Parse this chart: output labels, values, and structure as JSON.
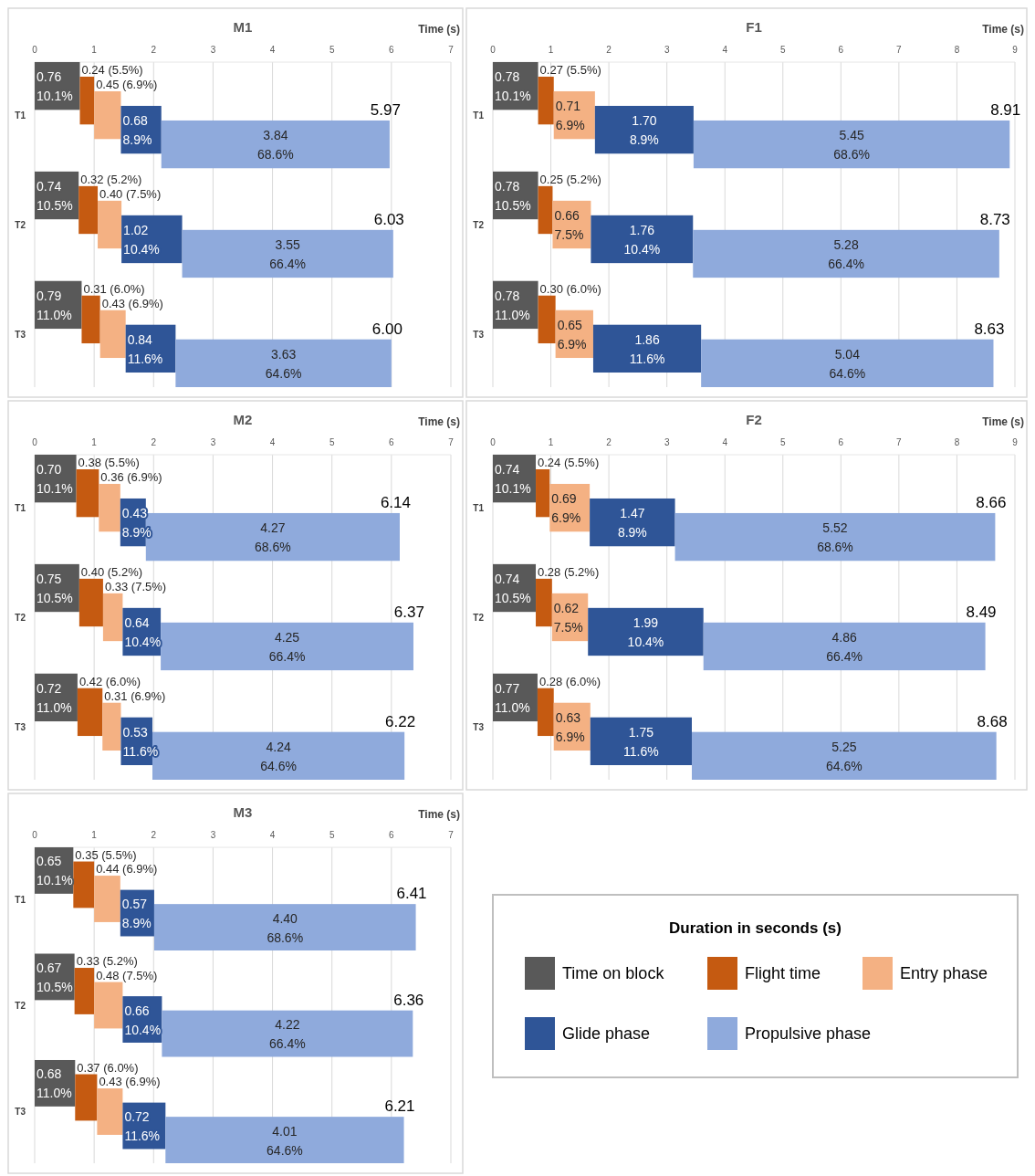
{
  "chart_data": [
    {
      "type": "bar",
      "orientation": "horizontal",
      "stacked": true,
      "title": "M1",
      "xlabel": "Time (s)",
      "categories": [
        "T1",
        "T2",
        "T3"
      ],
      "xlim": [
        0,
        7
      ],
      "xticks": [
        0,
        1,
        2,
        3,
        4,
        5,
        6,
        7
      ],
      "grid": "x",
      "totals": [
        "5.97",
        "6.03",
        "6.00"
      ],
      "series": [
        {
          "color": "#595959",
          "values": [
            0.76,
            0.74,
            0.79
          ],
          "value_labels": [
            "0.76\n10.1%",
            "0.74\n10.5%",
            "0.79\n11.0%"
          ]
        },
        {
          "color": "#c55a11",
          "values": [
            0.24,
            0.32,
            0.31
          ],
          "value_labels": [
            "0.24 (5.5%)",
            "0.32 (5.2%)",
            "0.31 (6.0%)"
          ]
        },
        {
          "color": "#f4b183",
          "values": [
            0.45,
            0.4,
            0.43
          ],
          "value_labels": [
            "0.45 (6.9%)",
            "0.40 (7.5%)",
            "0.43 (6.9%)"
          ]
        },
        {
          "color": "#2f5597",
          "values": [
            0.68,
            1.02,
            0.84
          ],
          "value_labels": [
            "0.68\n8.9%",
            "1.02\n10.4%",
            "0.84\n11.6%"
          ]
        },
        {
          "color": "#8faadc",
          "values": [
            3.84,
            3.55,
            3.63
          ],
          "value_labels": [
            "3.84\n68.6%",
            "3.55\n66.4%",
            "3.63\n64.6%"
          ]
        }
      ]
    },
    {
      "type": "bar",
      "orientation": "horizontal",
      "stacked": true,
      "title": "F1",
      "xlabel": "Time (s)",
      "categories": [
        "T1",
        "T2",
        "T3"
      ],
      "xlim": [
        0,
        9
      ],
      "xticks": [
        0,
        1,
        2,
        3,
        4,
        5,
        6,
        7,
        8,
        9
      ],
      "grid": "x",
      "totals": [
        "8.91",
        "8.73",
        "8.63"
      ],
      "series": [
        {
          "color": "#595959",
          "values": [
            0.78,
            0.78,
            0.78
          ],
          "value_labels": [
            "0.78\n10.1%",
            "0.78\n10.5%",
            "0.78\n11.0%"
          ]
        },
        {
          "color": "#c55a11",
          "values": [
            0.27,
            0.25,
            0.3
          ],
          "value_labels": [
            "0.27 (5.5%)",
            "0.25 (5.2%)",
            "0.30 (6.0%)"
          ]
        },
        {
          "color": "#f4b183",
          "values": [
            0.71,
            0.66,
            0.65
          ],
          "value_labels": [
            "0.71\n6.9%",
            "0.66\n7.5%",
            "0.65\n6.9%"
          ]
        },
        {
          "color": "#2f5597",
          "values": [
            1.7,
            1.76,
            1.86
          ],
          "value_labels": [
            "1.70\n8.9%",
            "1.76\n10.4%",
            "1.86\n11.6%"
          ]
        },
        {
          "color": "#8faadc",
          "values": [
            5.45,
            5.28,
            5.04
          ],
          "value_labels": [
            "5.45\n68.6%",
            "5.28\n66.4%",
            "5.04\n64.6%"
          ]
        }
      ]
    },
    {
      "type": "bar",
      "orientation": "horizontal",
      "stacked": true,
      "title": "M2",
      "xlabel": "Time (s)",
      "categories": [
        "T1",
        "T2",
        "T3"
      ],
      "xlim": [
        0,
        7
      ],
      "xticks": [
        0,
        1,
        2,
        3,
        4,
        5,
        6,
        7
      ],
      "grid": "x",
      "totals": [
        "6.14",
        "6.37",
        "6.22"
      ],
      "series": [
        {
          "color": "#595959",
          "values": [
            0.7,
            0.75,
            0.72
          ],
          "value_labels": [
            "0.70\n10.1%",
            "0.75\n10.5%",
            "0.72\n11.0%"
          ]
        },
        {
          "color": "#c55a11",
          "values": [
            0.38,
            0.4,
            0.42
          ],
          "value_labels": [
            "0.38 (5.5%)",
            "0.40 (5.2%)",
            "0.42 (6.0%)"
          ]
        },
        {
          "color": "#f4b183",
          "values": [
            0.36,
            0.33,
            0.31
          ],
          "value_labels": [
            "0.36 (6.9%)",
            "0.33 (7.5%)",
            "0.31 (6.9%)"
          ]
        },
        {
          "color": "#2f5597",
          "values": [
            0.43,
            0.64,
            0.53
          ],
          "value_labels": [
            "0.43\n8.9%",
            "0.64\n10.4%",
            "0.53\n11.6%"
          ]
        },
        {
          "color": "#8faadc",
          "values": [
            4.27,
            4.25,
            4.24
          ],
          "value_labels": [
            "4.27\n68.6%",
            "4.25\n66.4%",
            "4.24\n64.6%"
          ]
        }
      ]
    },
    {
      "type": "bar",
      "orientation": "horizontal",
      "stacked": true,
      "title": "F2",
      "xlabel": "Time (s)",
      "categories": [
        "T1",
        "T2",
        "T3"
      ],
      "xlim": [
        0,
        9
      ],
      "xticks": [
        0,
        1,
        2,
        3,
        4,
        5,
        6,
        7,
        8,
        9
      ],
      "grid": "x",
      "totals": [
        "8.66",
        "8.49",
        "8.68"
      ],
      "series": [
        {
          "color": "#595959",
          "values": [
            0.74,
            0.74,
            0.77
          ],
          "value_labels": [
            "0.74\n10.1%",
            "0.74\n10.5%",
            "0.77\n11.0%"
          ]
        },
        {
          "color": "#c55a11",
          "values": [
            0.24,
            0.28,
            0.28
          ],
          "value_labels": [
            "0.24 (5.5%)",
            "0.28 (5.2%)",
            "0.28 (6.0%)"
          ]
        },
        {
          "color": "#f4b183",
          "values": [
            0.69,
            0.62,
            0.63
          ],
          "value_labels": [
            "0.69\n6.9%",
            "0.62\n7.5%",
            "0.63\n6.9%"
          ]
        },
        {
          "color": "#2f5597",
          "values": [
            1.47,
            1.99,
            1.75
          ],
          "value_labels": [
            "1.47\n8.9%",
            "1.99\n10.4%",
            "1.75\n11.6%"
          ]
        },
        {
          "color": "#8faadc",
          "values": [
            5.52,
            4.86,
            5.25
          ],
          "value_labels": [
            "5.52\n68.6%",
            "4.86\n66.4%",
            "5.25\n64.6%"
          ]
        }
      ]
    },
    {
      "type": "bar",
      "orientation": "horizontal",
      "stacked": true,
      "title": "M3",
      "xlabel": "Time (s)",
      "categories": [
        "T1",
        "T2",
        "T3"
      ],
      "xlim": [
        0,
        7
      ],
      "xticks": [
        0,
        1,
        2,
        3,
        4,
        5,
        6,
        7
      ],
      "grid": "x",
      "totals": [
        "6.41",
        "6.36",
        "6.21"
      ],
      "legend": "right",
      "legend_title": "Duration in seconds (s)",
      "series": [
        {
          "name": "Time on block",
          "color": "#595959",
          "values": [
            0.65,
            0.67,
            0.68
          ],
          "value_labels": [
            "0.65\n10.1%",
            "0.67\n10.5%",
            "0.68\n11.0%"
          ]
        },
        {
          "name": "Flight time",
          "color": "#c55a11",
          "values": [
            0.35,
            0.33,
            0.37
          ],
          "value_labels": [
            "0.35 (5.5%)",
            "0.33 (5.2%)",
            "0.37 (6.0%)"
          ]
        },
        {
          "name": "Entry phase",
          "color": "#f4b183",
          "values": [
            0.44,
            0.48,
            0.43
          ],
          "value_labels": [
            "0.44 (6.9%)",
            "0.48 (7.5%)",
            "0.43 (6.9%)"
          ]
        },
        {
          "name": "Glide phase",
          "color": "#2f5597",
          "values": [
            0.57,
            0.66,
            0.72
          ],
          "value_labels": [
            "0.57\n8.9%",
            "0.66\n10.4%",
            "0.72\n11.6%"
          ]
        },
        {
          "name": "Propulsive phase",
          "color": "#8faadc",
          "values": [
            4.4,
            4.22,
            4.01
          ],
          "value_labels": [
            "4.40\n68.6%",
            "4.22\n66.4%",
            "4.01\n64.6%"
          ]
        }
      ]
    }
  ]
}
